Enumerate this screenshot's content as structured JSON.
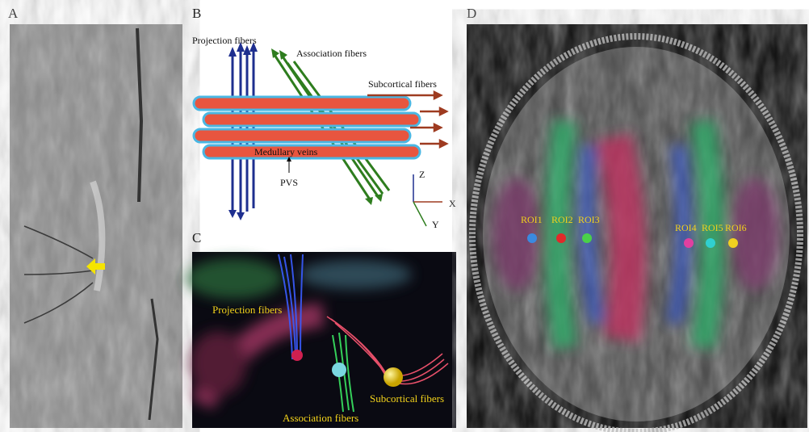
{
  "panels": {
    "a": {
      "label": "A"
    },
    "b": {
      "label": "B",
      "projection": "Projection fibers",
      "association": "Association fibers",
      "subcortical": "Subcortical fibers",
      "veins": "Medullary veins",
      "pvs": "PVS",
      "axes": [
        "Z",
        "X",
        "Y"
      ]
    },
    "c": {
      "label": "C",
      "projection": "Projection fibers",
      "subcortical": "Subcortical fibers",
      "association": "Association fibers"
    },
    "d": {
      "label": "D",
      "rois": [
        "ROI1",
        "ROI2",
        "ROI3",
        "ROI4",
        "ROI5",
        "ROI6"
      ]
    }
  }
}
